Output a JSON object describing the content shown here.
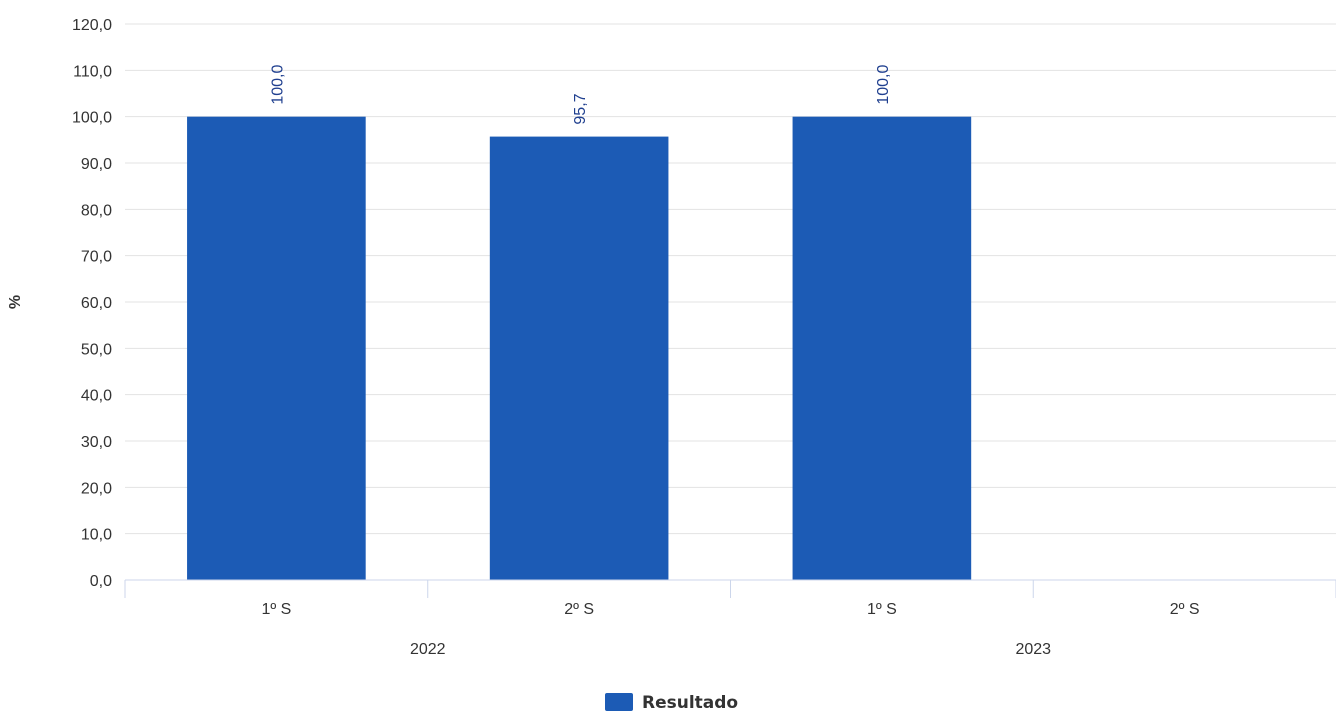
{
  "chart_data": {
    "type": "bar",
    "title": "",
    "ylabel": "%",
    "xlabel": "",
    "ylim": [
      0,
      120
    ],
    "yticks": [
      "0,0",
      "10,0",
      "20,0",
      "30,0",
      "40,0",
      "50,0",
      "60,0",
      "70,0",
      "80,0",
      "90,0",
      "100,0",
      "110,0",
      "120,0"
    ],
    "groups": [
      {
        "label": "2022",
        "categories": [
          "1º S",
          "2º S"
        ]
      },
      {
        "label": "2023",
        "categories": [
          "1º S",
          "2º S"
        ]
      }
    ],
    "categories": [
      "1º S",
      "2º S",
      "1º S",
      "2º S"
    ],
    "series": [
      {
        "name": "Resultado",
        "color": "#1c5bb5",
        "values": [
          100.0,
          95.7,
          100.0,
          null
        ],
        "labels": [
          "100,0",
          "95,7",
          "100,0",
          ""
        ]
      }
    ],
    "grid": true,
    "legend": "bottom-center"
  }
}
